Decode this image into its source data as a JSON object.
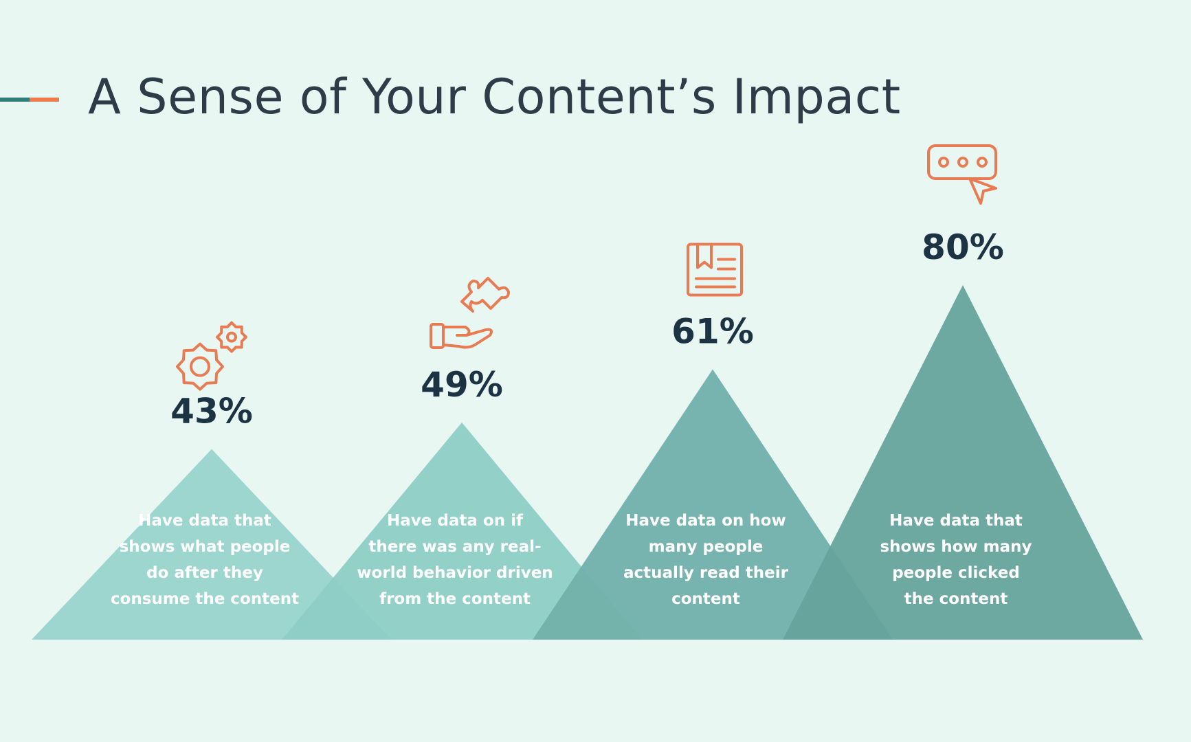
{
  "title": "A Sense of Your Content’s Impact",
  "colors": {
    "background": "#e9f7f3",
    "accent_teal": "#2f7f78",
    "accent_orange": "#ef7a4c",
    "icon": "#e97b52",
    "value_text": "#1c3344",
    "desc_text": "#ffffff"
  },
  "chart_data": {
    "type": "bar",
    "title": "A Sense of Your Content’s Impact",
    "unit": "%",
    "ylim": [
      0,
      100
    ],
    "items": [
      {
        "value": 43,
        "label": "43%",
        "icon": "gears-icon",
        "description": [
          "Have data that",
          "shows what people",
          "do after they",
          "consume the content"
        ],
        "color": "#99d3cc"
      },
      {
        "value": 49,
        "label": "49%",
        "icon": "hand-puzzle-icon",
        "description": [
          "Have data on if",
          "there was any real-",
          "world behavior driven",
          "from the content"
        ],
        "color": "#8ecdc5"
      },
      {
        "value": 61,
        "label": "61%",
        "icon": "document-bookmark-icon",
        "description": [
          "Have data on how",
          "many people",
          "actually read their",
          "content"
        ],
        "color": "#72b0ab"
      },
      {
        "value": 80,
        "label": "80%",
        "icon": "chat-click-icon",
        "description": [
          "Have data that",
          "shows how many",
          "people clicked",
          "the content"
        ],
        "color": "#66a39c"
      }
    ]
  }
}
